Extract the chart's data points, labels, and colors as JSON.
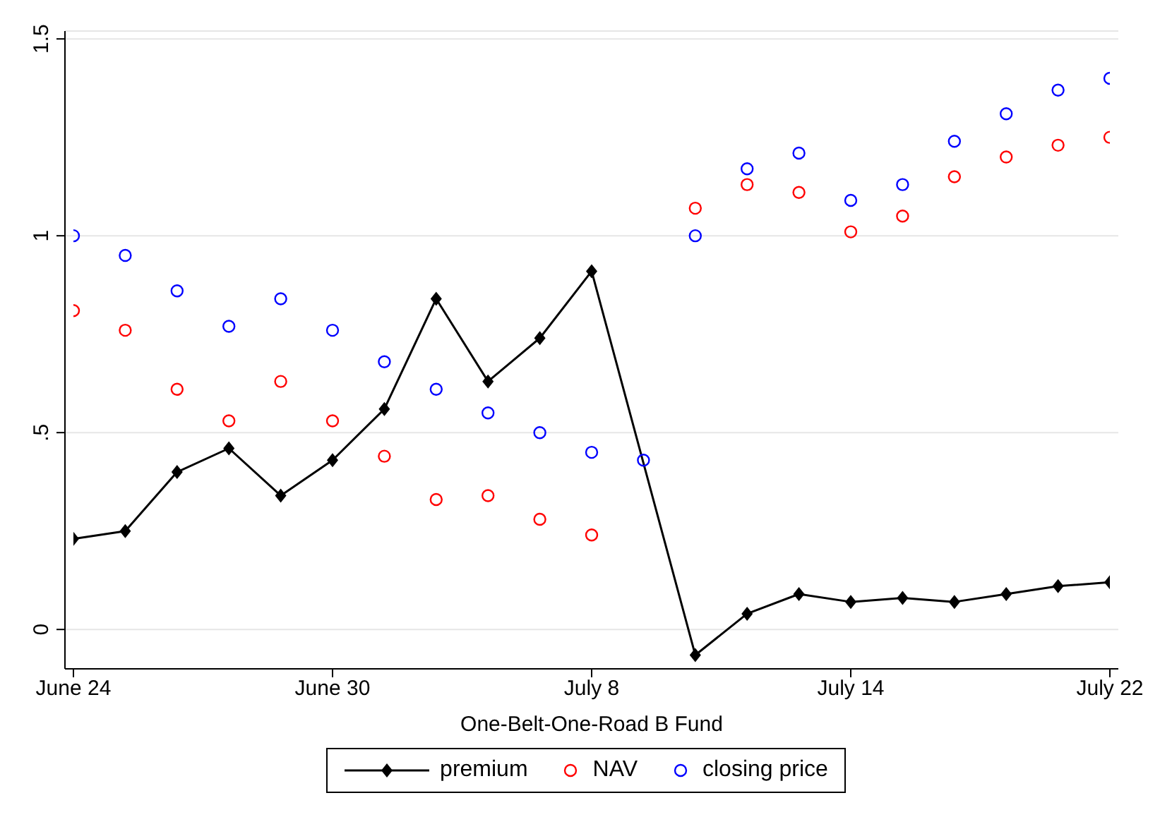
{
  "chart_data": {
    "type": "line",
    "xlabel": "One-Belt-One-Road B Fund",
    "categories": [
      "June 24",
      null,
      null,
      null,
      null,
      "June 30",
      null,
      null,
      null,
      null,
      "July 8",
      null,
      null,
      null,
      null,
      "July 14",
      null,
      null,
      null,
      null,
      "July 22"
    ],
    "series": [
      {
        "name": "premium",
        "marker": "diamond",
        "color": "#000000",
        "values": [
          0.23,
          0.25,
          0.4,
          0.46,
          0.34,
          0.43,
          0.56,
          0.84,
          0.63,
          0.74,
          0.91,
          null,
          -0.065,
          0.04,
          0.09,
          0.07,
          0.08,
          0.07,
          0.09,
          0.11,
          0.12
        ]
      },
      {
        "name": "NAV",
        "type": "scatter",
        "marker": "circle",
        "color": "#ff0000",
        "values": [
          0.81,
          0.76,
          0.61,
          0.53,
          0.63,
          0.53,
          0.44,
          0.33,
          0.34,
          0.28,
          0.24,
          null,
          1.07,
          1.13,
          1.11,
          1.01,
          1.05,
          1.15,
          1.2,
          1.23,
          1.25
        ]
      },
      {
        "name": "closing price",
        "type": "scatter",
        "marker": "circle",
        "color": "#0000ff",
        "values": [
          1.0,
          0.95,
          0.86,
          0.77,
          0.84,
          0.76,
          0.68,
          0.61,
          0.55,
          0.5,
          0.45,
          0.43,
          1.0,
          1.17,
          1.21,
          1.09,
          1.13,
          1.24,
          1.31,
          1.37,
          1.4
        ]
      }
    ],
    "ylim": [
      -0.1,
      1.52
    ],
    "yticks": [
      0,
      {
        "value": 0.5,
        "label": ".5"
      },
      1,
      1.5
    ],
    "grid": "y",
    "legend": "bottom"
  }
}
